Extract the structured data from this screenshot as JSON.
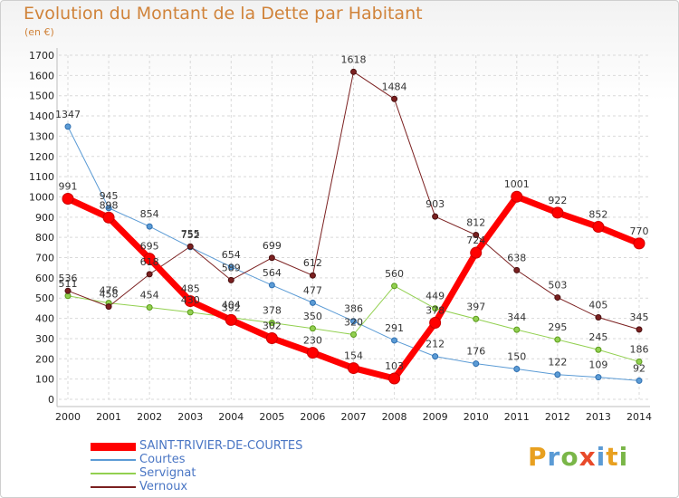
{
  "chart_data": {
    "type": "line",
    "title": "Evolution du Montant de la Dette par Habitant",
    "subtitle": "(en €)",
    "categories": [
      "2000",
      "2001",
      "2002",
      "2003",
      "2004",
      "2005",
      "2006",
      "2007",
      "2008",
      "2009",
      "2010",
      "2011",
      "2012",
      "2013",
      "2014"
    ],
    "ylim": [
      0,
      1700
    ],
    "yticks": [
      0,
      100,
      200,
      300,
      400,
      500,
      600,
      700,
      800,
      900,
      1000,
      1100,
      1200,
      1300,
      1400,
      1500,
      1600,
      1700
    ],
    "grid": true,
    "legend_position": "bottom-left",
    "series": [
      {
        "name": "Courtes",
        "color": "#5b9bd5",
        "width": 1,
        "values": [
          1347,
          945,
          854,
          752,
          654,
          564,
          477,
          386,
          291,
          212,
          176,
          150,
          122,
          109,
          92
        ]
      },
      {
        "name": "Servignat",
        "color": "#92d050",
        "width": 1,
        "values": [
          511,
          476,
          454,
          430,
          404,
          378,
          350,
          320,
          560,
          449,
          397,
          344,
          295,
          245,
          186
        ]
      },
      {
        "name": "Vernoux",
        "color": "#7b2020",
        "width": 1,
        "values": [
          536,
          458,
          618,
          755,
          589,
          699,
          612,
          1618,
          1484,
          903,
          812,
          638,
          503,
          405,
          345
        ]
      },
      {
        "name": "SAINT-TRIVIER-DE-COURTES",
        "color": "#ff0000",
        "width": 7,
        "values": [
          991,
          898,
          695,
          485,
          392,
          302,
          230,
          154,
          103,
          378,
          724,
          1001,
          922,
          852,
          770
        ]
      }
    ]
  },
  "legend": {
    "items": [
      {
        "label": "SAINT-TRIVIER-DE-COURTES",
        "color": "#ff0000"
      },
      {
        "label": "Courtes",
        "color": "#5b9bd5"
      },
      {
        "label": "Servignat",
        "color": "#92d050"
      },
      {
        "label": "Vernoux",
        "color": "#7b2020"
      }
    ]
  },
  "logo": {
    "text": "Proxiti",
    "colors": [
      "#e8a020",
      "#5b9bd5",
      "#7ab648",
      "#e84a2a",
      "#5b9bd5",
      "#e8a020",
      "#7ab648"
    ]
  }
}
